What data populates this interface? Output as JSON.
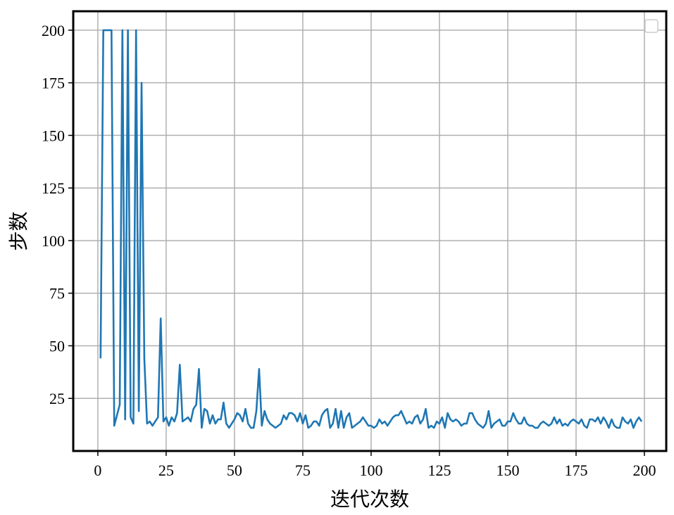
{
  "chart_data": {
    "type": "line",
    "xlabel": "迭代次数",
    "ylabel": "步数",
    "xlim": [
      -9,
      208
    ],
    "ylim": [
      0,
      209
    ],
    "xticks": [
      0,
      25,
      50,
      75,
      100,
      125,
      150,
      175,
      200
    ],
    "yticks": [
      25,
      50,
      75,
      100,
      125,
      150,
      175,
      200
    ],
    "grid": true,
    "legend": "top-right (empty)",
    "series": [
      {
        "color": "#1f77b4",
        "x": [
          1,
          2,
          3,
          4,
          5,
          6,
          7,
          8,
          9,
          10,
          11,
          12,
          13,
          14,
          15,
          16,
          17,
          18,
          19,
          20,
          21,
          22,
          23,
          24,
          25,
          26,
          27,
          28,
          29,
          30,
          31,
          32,
          33,
          34,
          35,
          36,
          37,
          38,
          39,
          40,
          41,
          42,
          43,
          44,
          45,
          46,
          47,
          48,
          49,
          50,
          51,
          52,
          53,
          54,
          55,
          56,
          57,
          58,
          59,
          60,
          61,
          62,
          63,
          64,
          65,
          66,
          67,
          68,
          69,
          70,
          71,
          72,
          73,
          74,
          75,
          76,
          77,
          78,
          79,
          80,
          81,
          82,
          83,
          84,
          85,
          86,
          87,
          88,
          89,
          90,
          91,
          92,
          93,
          94,
          95,
          96,
          97,
          98,
          99,
          100,
          101,
          102,
          103,
          104,
          105,
          106,
          107,
          108,
          109,
          110,
          111,
          112,
          113,
          114,
          115,
          116,
          117,
          118,
          119,
          120,
          121,
          122,
          123,
          124,
          125,
          126,
          127,
          128,
          129,
          130,
          131,
          132,
          133,
          134,
          135,
          136,
          137,
          138,
          139,
          140,
          141,
          142,
          143,
          144,
          145,
          146,
          147,
          148,
          149,
          150,
          151,
          152,
          153,
          154,
          155,
          156,
          157,
          158,
          159,
          160,
          161,
          162,
          163,
          164,
          165,
          166,
          167,
          168,
          169,
          170,
          171,
          172,
          173,
          174,
          175,
          176,
          177,
          178,
          179,
          180,
          181,
          182,
          183,
          184,
          185,
          186,
          187,
          188,
          189,
          190,
          191,
          192,
          193,
          194,
          195,
          196,
          197,
          198,
          199
        ],
        "y": [
          44,
          200,
          200,
          200,
          200,
          12,
          17,
          22,
          200,
          15,
          200,
          16,
          13,
          200,
          19,
          175,
          44,
          13,
          14,
          12,
          14,
          16,
          63,
          14,
          16,
          12,
          16,
          14,
          18,
          41,
          14,
          15,
          16,
          14,
          20,
          22,
          39,
          11,
          20,
          19,
          13,
          17,
          13,
          15,
          15,
          23,
          13,
          11,
          13,
          15,
          18,
          17,
          14,
          20,
          13,
          11,
          11,
          19,
          39,
          12,
          19,
          15,
          13,
          12,
          11,
          12,
          13,
          17,
          15,
          18,
          18,
          17,
          14,
          18,
          13,
          17,
          11,
          12,
          14,
          14,
          12,
          17,
          19,
          20,
          11,
          13,
          20,
          11,
          19,
          11,
          16,
          18,
          11,
          12,
          13,
          14,
          16,
          14,
          12,
          12,
          11,
          12,
          15,
          13,
          14,
          12,
          14,
          16,
          17,
          17,
          19,
          16,
          13,
          14,
          13,
          16,
          17,
          13,
          15,
          20,
          11,
          12,
          11,
          14,
          13,
          16,
          11,
          18,
          15,
          14,
          15,
          14,
          12,
          13,
          13,
          18,
          18,
          15,
          13,
          12,
          11,
          13,
          19,
          11,
          13,
          14,
          15,
          12,
          12,
          14,
          14,
          18,
          15,
          13,
          13,
          16,
          13,
          12,
          12,
          11,
          11,
          13,
          14,
          13,
          12,
          13,
          16,
          13,
          15,
          12,
          13,
          12,
          14,
          15,
          14,
          13,
          15,
          12,
          11,
          15,
          15,
          14,
          16,
          13,
          16,
          14,
          11,
          15,
          12,
          11,
          11,
          16,
          14,
          13,
          15,
          11,
          14,
          16,
          14
        ]
      }
    ]
  }
}
